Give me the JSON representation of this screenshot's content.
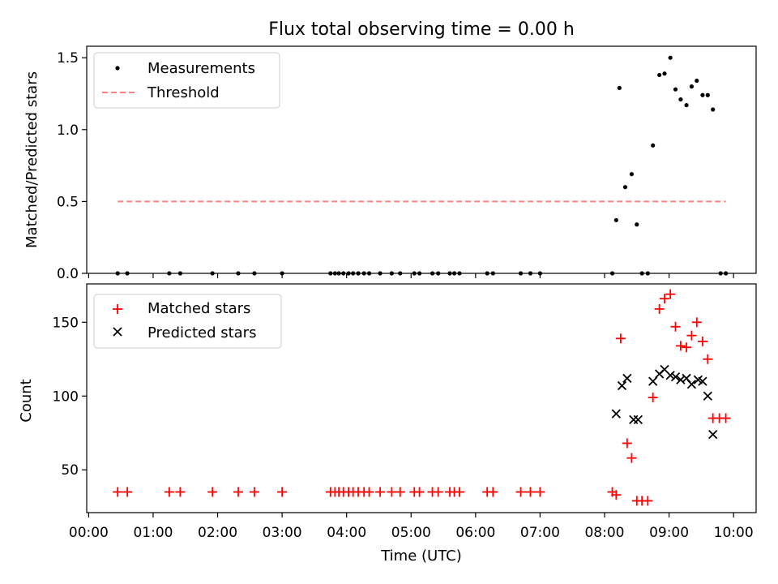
{
  "chart_data": [
    {
      "type": "scatter",
      "title": "Flux total observing time = 0.00 h",
      "ylabel": "Matched/Predicted stars",
      "xlabel": "",
      "xlim": [
        "-0.03",
        "10.35"
      ],
      "ylim": [
        0.0,
        1.58
      ],
      "yticks": [
        0.0,
        0.5,
        1.0,
        1.5
      ],
      "ytick_labels": [
        "0.0",
        "0.5",
        "1.0",
        "1.5"
      ],
      "legend": "top-left",
      "series": [
        {
          "name": "Measurements",
          "marker": "dot",
          "color": "#000000",
          "points": [
            [
              0.45,
              0.0
            ],
            [
              0.6,
              0.0
            ],
            [
              1.25,
              0.0
            ],
            [
              1.42,
              0.0
            ],
            [
              1.92,
              0.0
            ],
            [
              2.32,
              0.0
            ],
            [
              2.57,
              0.0
            ],
            [
              3.0,
              0.0
            ],
            [
              3.75,
              0.0
            ],
            [
              3.82,
              0.0
            ],
            [
              3.88,
              0.0
            ],
            [
              3.95,
              0.0
            ],
            [
              4.03,
              0.0
            ],
            [
              4.1,
              0.0
            ],
            [
              4.18,
              0.0
            ],
            [
              4.27,
              0.0
            ],
            [
              4.35,
              0.0
            ],
            [
              4.52,
              0.0
            ],
            [
              4.7,
              0.0
            ],
            [
              4.83,
              0.0
            ],
            [
              5.05,
              0.0
            ],
            [
              5.13,
              0.0
            ],
            [
              5.33,
              0.0
            ],
            [
              5.42,
              0.0
            ],
            [
              5.6,
              0.0
            ],
            [
              5.67,
              0.0
            ],
            [
              5.75,
              0.0
            ],
            [
              6.18,
              0.0
            ],
            [
              6.27,
              0.0
            ],
            [
              6.7,
              0.0
            ],
            [
              6.85,
              0.0
            ],
            [
              7.0,
              0.0
            ],
            [
              8.12,
              0.0
            ],
            [
              8.18,
              0.37
            ],
            [
              8.23,
              1.29
            ],
            [
              8.32,
              0.6
            ],
            [
              8.42,
              0.69
            ],
            [
              8.5,
              0.34
            ],
            [
              8.58,
              0.0
            ],
            [
              8.67,
              0.0
            ],
            [
              8.75,
              0.89
            ],
            [
              8.85,
              1.38
            ],
            [
              8.93,
              1.39
            ],
            [
              9.02,
              1.5
            ],
            [
              9.1,
              1.28
            ],
            [
              9.18,
              1.21
            ],
            [
              9.27,
              1.17
            ],
            [
              9.35,
              1.3
            ],
            [
              9.43,
              1.34
            ],
            [
              9.52,
              1.24
            ],
            [
              9.6,
              1.24
            ],
            [
              9.68,
              1.14
            ],
            [
              9.8,
              0.0
            ],
            [
              9.88,
              0.0
            ]
          ]
        },
        {
          "name": "Threshold",
          "marker": "dashed-line",
          "color": "#ff8080",
          "points": [
            [
              0.45,
              0.5
            ],
            [
              9.88,
              0.5
            ]
          ]
        }
      ]
    },
    {
      "type": "scatter",
      "title": "",
      "ylabel": "Count",
      "xlabel": "Time (UTC)",
      "xlim": [
        "-0.03",
        "10.35"
      ],
      "ylim": [
        21,
        176
      ],
      "yticks": [
        50,
        100,
        150
      ],
      "ytick_labels": [
        "50",
        "100",
        "150"
      ],
      "xticks": [
        0,
        1,
        2,
        3,
        4,
        5,
        6,
        7,
        8,
        9,
        10
      ],
      "xtick_labels": [
        "00:00",
        "01:00",
        "02:00",
        "03:00",
        "04:00",
        "05:00",
        "06:00",
        "07:00",
        "08:00",
        "09:00",
        "10:00"
      ],
      "legend": "top-left",
      "series": [
        {
          "name": "Matched stars",
          "marker": "plus",
          "color": "#ff0000",
          "points": [
            [
              0.45,
              35
            ],
            [
              0.6,
              35
            ],
            [
              1.25,
              35
            ],
            [
              1.42,
              35
            ],
            [
              1.92,
              35
            ],
            [
              2.32,
              35
            ],
            [
              2.57,
              35
            ],
            [
              3.0,
              35
            ],
            [
              3.75,
              35
            ],
            [
              3.82,
              35
            ],
            [
              3.88,
              35
            ],
            [
              3.95,
              35
            ],
            [
              4.03,
              35
            ],
            [
              4.1,
              35
            ],
            [
              4.18,
              35
            ],
            [
              4.27,
              35
            ],
            [
              4.35,
              35
            ],
            [
              4.52,
              35
            ],
            [
              4.7,
              35
            ],
            [
              4.83,
              35
            ],
            [
              5.05,
              35
            ],
            [
              5.13,
              35
            ],
            [
              5.33,
              35
            ],
            [
              5.42,
              35
            ],
            [
              5.6,
              35
            ],
            [
              5.67,
              35
            ],
            [
              5.75,
              35
            ],
            [
              6.18,
              35
            ],
            [
              6.27,
              35
            ],
            [
              6.7,
              35
            ],
            [
              6.85,
              35
            ],
            [
              7.0,
              35
            ],
            [
              8.12,
              35
            ],
            [
              8.18,
              33
            ],
            [
              8.25,
              139
            ],
            [
              8.35,
              68
            ],
            [
              8.42,
              58
            ],
            [
              8.5,
              29
            ],
            [
              8.58,
              29
            ],
            [
              8.67,
              29
            ],
            [
              8.75,
              99
            ],
            [
              8.85,
              159
            ],
            [
              8.93,
              166
            ],
            [
              9.02,
              169
            ],
            [
              9.1,
              147
            ],
            [
              9.18,
              134
            ],
            [
              9.27,
              133
            ],
            [
              9.35,
              141
            ],
            [
              9.43,
              150
            ],
            [
              9.52,
              137
            ],
            [
              9.6,
              125
            ],
            [
              9.68,
              85
            ],
            [
              9.78,
              85
            ],
            [
              9.88,
              85
            ]
          ]
        },
        {
          "name": "Predicted stars",
          "marker": "x",
          "color": "#000000",
          "points": [
            [
              8.18,
              88
            ],
            [
              8.27,
              107
            ],
            [
              8.35,
              112
            ],
            [
              8.45,
              84
            ],
            [
              8.52,
              84
            ],
            [
              8.75,
              110
            ],
            [
              8.85,
              115
            ],
            [
              8.93,
              118
            ],
            [
              9.02,
              114
            ],
            [
              9.1,
              113
            ],
            [
              9.18,
              111
            ],
            [
              9.27,
              112
            ],
            [
              9.35,
              108
            ],
            [
              9.45,
              111
            ],
            [
              9.52,
              110
            ],
            [
              9.6,
              100
            ],
            [
              9.68,
              74
            ]
          ]
        }
      ]
    }
  ]
}
